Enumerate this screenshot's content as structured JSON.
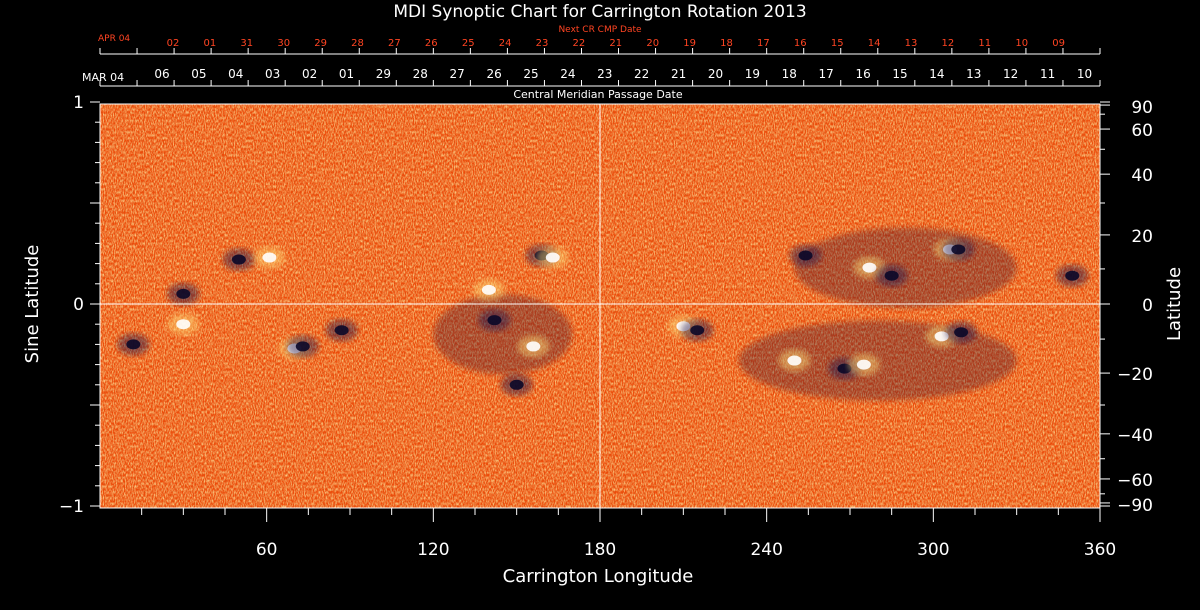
{
  "chart_data": {
    "type": "heatmap",
    "title": "MDI Synoptic Chart for Carrington Rotation 2013",
    "xlabel": "Carrington Longitude",
    "ylabel": "Sine Latitude",
    "y2label": "Latitude",
    "x_range": [
      0,
      360
    ],
    "y_range": [
      -1,
      1
    ],
    "x_ticks": [
      "60",
      "120",
      "180",
      "240",
      "300",
      "360"
    ],
    "y_ticks": [
      "1",
      "0",
      "−1"
    ],
    "lat_ticks": [
      "90",
      "60",
      "40",
      "20",
      "0",
      "−20",
      "−40",
      "−60",
      "−90"
    ],
    "cmp_axis_label": "Central Meridian Passage Date",
    "cmp_start_label": "MAR 04",
    "cmp_dates": [
      "06",
      "05",
      "04",
      "03",
      "02",
      "01",
      "29",
      "28",
      "27",
      "26",
      "25",
      "24",
      "23",
      "22",
      "21",
      "20",
      "19",
      "18",
      "17",
      "16",
      "15",
      "14",
      "13",
      "12",
      "11",
      "10"
    ],
    "next_cmp_axis_label": "Next CR CMP Date",
    "next_cmp_start_label": "APR 04",
    "next_cmp_dates": [
      "02",
      "01",
      "31",
      "30",
      "29",
      "28",
      "27",
      "26",
      "25",
      "24",
      "23",
      "22",
      "21",
      "20",
      "19",
      "18",
      "17",
      "16",
      "15",
      "14",
      "13",
      "12",
      "11",
      "10",
      "09"
    ],
    "active_regions": [
      {
        "lon": 12,
        "sinlat": -0.2,
        "polarity": "dark"
      },
      {
        "lon": 30,
        "sinlat": 0.05,
        "polarity": "dark"
      },
      {
        "lon": 30,
        "sinlat": -0.1,
        "polarity": "bright"
      },
      {
        "lon": 50,
        "sinlat": 0.22,
        "polarity": "dark"
      },
      {
        "lon": 61,
        "sinlat": 0.23,
        "polarity": "bright"
      },
      {
        "lon": 70,
        "sinlat": -0.22,
        "polarity": "bright"
      },
      {
        "lon": 73,
        "sinlat": -0.21,
        "polarity": "dark"
      },
      {
        "lon": 87,
        "sinlat": -0.13,
        "polarity": "dark"
      },
      {
        "lon": 140,
        "sinlat": 0.07,
        "polarity": "bright"
      },
      {
        "lon": 142,
        "sinlat": -0.08,
        "polarity": "dark"
      },
      {
        "lon": 150,
        "sinlat": -0.4,
        "polarity": "dark"
      },
      {
        "lon": 156,
        "sinlat": -0.21,
        "polarity": "bright"
      },
      {
        "lon": 159,
        "sinlat": 0.24,
        "polarity": "dark"
      },
      {
        "lon": 163,
        "sinlat": 0.23,
        "polarity": "bright"
      },
      {
        "lon": 210,
        "sinlat": -0.11,
        "polarity": "bright"
      },
      {
        "lon": 215,
        "sinlat": -0.13,
        "polarity": "dark"
      },
      {
        "lon": 250,
        "sinlat": -0.28,
        "polarity": "bright"
      },
      {
        "lon": 254,
        "sinlat": 0.24,
        "polarity": "dark"
      },
      {
        "lon": 268,
        "sinlat": -0.32,
        "polarity": "dark"
      },
      {
        "lon": 275,
        "sinlat": -0.3,
        "polarity": "bright"
      },
      {
        "lon": 277,
        "sinlat": 0.18,
        "polarity": "bright"
      },
      {
        "lon": 285,
        "sinlat": 0.14,
        "polarity": "dark"
      },
      {
        "lon": 303,
        "sinlat": -0.16,
        "polarity": "bright"
      },
      {
        "lon": 306,
        "sinlat": 0.27,
        "polarity": "bright"
      },
      {
        "lon": 309,
        "sinlat": 0.27,
        "polarity": "dark"
      },
      {
        "lon": 310,
        "sinlat": -0.14,
        "polarity": "dark"
      },
      {
        "lon": 350,
        "sinlat": 0.14,
        "polarity": "dark"
      }
    ],
    "colors": {
      "background": "#000000",
      "field_base": "#ee4a08",
      "positive": "#ffe07a",
      "negative": "#1a1850",
      "axes": "#ffffff",
      "next_cmp": "#ff4422"
    },
    "grid": false
  }
}
